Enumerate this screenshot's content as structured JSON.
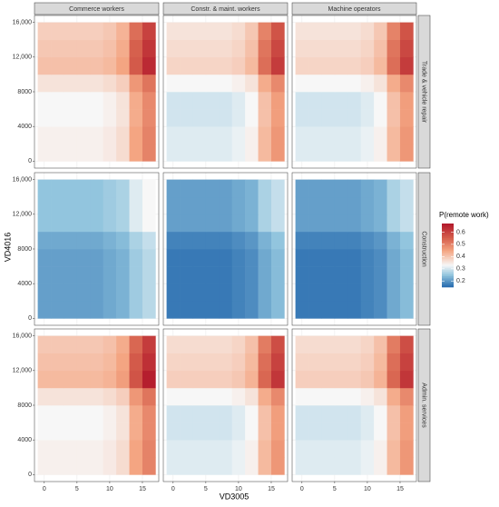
{
  "chart_data": {
    "type": "heatmap",
    "x_label": "VD3005",
    "y_label": "VD4016",
    "legend_title": "P(remote work)",
    "columns": [
      "Commerce workers",
      "Constr. & maint. workers",
      "Machine operators"
    ],
    "rows": [
      "Trade & vehicle repair",
      "Construction",
      "Admin. services"
    ],
    "x": [
      0,
      2,
      4,
      6,
      8,
      10,
      12,
      14,
      16
    ],
    "y": [
      1000,
      3000,
      5000,
      7000,
      9000,
      11000,
      13000,
      15000
    ],
    "xlim": [
      -1.5,
      17.5
    ],
    "ylim": [
      -800,
      16800
    ],
    "xticks": [
      0,
      5,
      10,
      15
    ],
    "yticks": [
      0,
      4000,
      8000,
      {
        "value": 12000,
        "label": "12,000"
      },
      {
        "value": 16000,
        "label": "16,000"
      }
    ],
    "grid": true,
    "colorscale": [
      [
        0.15,
        "#2166ac"
      ],
      [
        0.25,
        "#92c5de"
      ],
      [
        0.33,
        "#f7f7f7"
      ],
      [
        0.45,
        "#f4a582"
      ],
      [
        0.55,
        "#d6604d"
      ],
      [
        0.67,
        "#b2182b"
      ]
    ],
    "legend_lim": [
      0.15,
      0.67
    ],
    "legend_ticks": [
      0.2,
      0.3,
      0.4,
      0.5,
      0.6
    ],
    "panels": [
      {
        "values": [
          [
            0.34,
            0.34,
            0.34,
            0.34,
            0.34,
            0.35,
            0.37,
            0.45,
            0.5
          ],
          [
            0.34,
            0.34,
            0.34,
            0.34,
            0.34,
            0.35,
            0.37,
            0.45,
            0.5
          ],
          [
            0.33,
            0.33,
            0.33,
            0.33,
            0.33,
            0.34,
            0.36,
            0.44,
            0.49
          ],
          [
            0.33,
            0.33,
            0.33,
            0.33,
            0.33,
            0.34,
            0.36,
            0.44,
            0.49
          ],
          [
            0.36,
            0.36,
            0.36,
            0.36,
            0.36,
            0.37,
            0.39,
            0.47,
            0.52
          ],
          [
            0.41,
            0.41,
            0.41,
            0.41,
            0.41,
            0.42,
            0.45,
            0.56,
            0.64
          ],
          [
            0.4,
            0.4,
            0.4,
            0.4,
            0.4,
            0.41,
            0.44,
            0.55,
            0.62
          ],
          [
            0.39,
            0.39,
            0.39,
            0.39,
            0.39,
            0.4,
            0.43,
            0.53,
            0.6
          ]
        ]
      },
      {
        "values": [
          [
            0.31,
            0.31,
            0.31,
            0.31,
            0.31,
            0.32,
            0.34,
            0.42,
            0.47
          ],
          [
            0.31,
            0.31,
            0.31,
            0.31,
            0.31,
            0.32,
            0.34,
            0.42,
            0.47
          ],
          [
            0.3,
            0.3,
            0.3,
            0.3,
            0.3,
            0.31,
            0.33,
            0.41,
            0.46
          ],
          [
            0.3,
            0.3,
            0.3,
            0.3,
            0.3,
            0.31,
            0.33,
            0.41,
            0.46
          ],
          [
            0.33,
            0.33,
            0.33,
            0.33,
            0.33,
            0.34,
            0.36,
            0.44,
            0.49
          ],
          [
            0.38,
            0.38,
            0.38,
            0.38,
            0.38,
            0.39,
            0.42,
            0.53,
            0.61
          ],
          [
            0.37,
            0.37,
            0.37,
            0.37,
            0.37,
            0.38,
            0.41,
            0.52,
            0.59
          ],
          [
            0.36,
            0.36,
            0.36,
            0.36,
            0.36,
            0.37,
            0.4,
            0.5,
            0.57
          ]
        ]
      },
      {
        "values": [
          [
            0.31,
            0.31,
            0.31,
            0.31,
            0.31,
            0.32,
            0.34,
            0.42,
            0.47
          ],
          [
            0.31,
            0.31,
            0.31,
            0.31,
            0.31,
            0.32,
            0.34,
            0.42,
            0.47
          ],
          [
            0.3,
            0.3,
            0.3,
            0.3,
            0.3,
            0.31,
            0.33,
            0.41,
            0.46
          ],
          [
            0.3,
            0.3,
            0.3,
            0.3,
            0.3,
            0.31,
            0.33,
            0.41,
            0.46
          ],
          [
            0.33,
            0.33,
            0.33,
            0.33,
            0.33,
            0.34,
            0.36,
            0.44,
            0.49
          ],
          [
            0.38,
            0.38,
            0.38,
            0.38,
            0.38,
            0.39,
            0.42,
            0.53,
            0.61
          ],
          [
            0.37,
            0.37,
            0.37,
            0.37,
            0.37,
            0.38,
            0.41,
            0.52,
            0.59
          ],
          [
            0.36,
            0.36,
            0.36,
            0.36,
            0.36,
            0.37,
            0.4,
            0.5,
            0.57
          ]
        ]
      },
      {
        "values": [
          [
            0.21,
            0.21,
            0.21,
            0.21,
            0.21,
            0.22,
            0.23,
            0.26,
            0.28
          ],
          [
            0.21,
            0.21,
            0.21,
            0.21,
            0.21,
            0.22,
            0.23,
            0.26,
            0.28
          ],
          [
            0.21,
            0.21,
            0.21,
            0.21,
            0.21,
            0.22,
            0.23,
            0.26,
            0.28
          ],
          [
            0.21,
            0.21,
            0.21,
            0.21,
            0.21,
            0.22,
            0.23,
            0.26,
            0.28
          ],
          [
            0.22,
            0.22,
            0.22,
            0.22,
            0.22,
            0.23,
            0.24,
            0.27,
            0.29
          ],
          [
            0.25,
            0.25,
            0.25,
            0.25,
            0.25,
            0.26,
            0.27,
            0.31,
            0.33
          ],
          [
            0.25,
            0.25,
            0.25,
            0.25,
            0.25,
            0.26,
            0.27,
            0.31,
            0.33
          ],
          [
            0.25,
            0.25,
            0.25,
            0.25,
            0.25,
            0.26,
            0.27,
            0.31,
            0.33
          ]
        ]
      },
      {
        "values": [
          [
            0.17,
            0.17,
            0.17,
            0.17,
            0.17,
            0.18,
            0.19,
            0.22,
            0.24
          ],
          [
            0.17,
            0.17,
            0.17,
            0.17,
            0.17,
            0.18,
            0.19,
            0.22,
            0.24
          ],
          [
            0.17,
            0.17,
            0.17,
            0.17,
            0.17,
            0.18,
            0.19,
            0.22,
            0.24
          ],
          [
            0.17,
            0.17,
            0.17,
            0.17,
            0.17,
            0.18,
            0.19,
            0.22,
            0.24
          ],
          [
            0.18,
            0.18,
            0.18,
            0.18,
            0.18,
            0.19,
            0.2,
            0.23,
            0.25
          ],
          [
            0.21,
            0.21,
            0.21,
            0.21,
            0.21,
            0.22,
            0.23,
            0.27,
            0.29
          ],
          [
            0.21,
            0.21,
            0.21,
            0.21,
            0.21,
            0.22,
            0.23,
            0.27,
            0.29
          ],
          [
            0.21,
            0.21,
            0.21,
            0.21,
            0.21,
            0.22,
            0.23,
            0.27,
            0.29
          ]
        ]
      },
      {
        "values": [
          [
            0.17,
            0.17,
            0.17,
            0.17,
            0.17,
            0.18,
            0.19,
            0.22,
            0.24
          ],
          [
            0.17,
            0.17,
            0.17,
            0.17,
            0.17,
            0.18,
            0.19,
            0.22,
            0.24
          ],
          [
            0.17,
            0.17,
            0.17,
            0.17,
            0.17,
            0.18,
            0.19,
            0.22,
            0.24
          ],
          [
            0.17,
            0.17,
            0.17,
            0.17,
            0.17,
            0.18,
            0.19,
            0.22,
            0.24
          ],
          [
            0.18,
            0.18,
            0.18,
            0.18,
            0.18,
            0.19,
            0.2,
            0.23,
            0.25
          ],
          [
            0.21,
            0.21,
            0.21,
            0.21,
            0.21,
            0.22,
            0.23,
            0.27,
            0.29
          ],
          [
            0.21,
            0.21,
            0.21,
            0.21,
            0.21,
            0.22,
            0.23,
            0.27,
            0.29
          ],
          [
            0.21,
            0.21,
            0.21,
            0.21,
            0.21,
            0.22,
            0.23,
            0.27,
            0.29
          ]
        ]
      },
      {
        "values": [
          [
            0.34,
            0.34,
            0.34,
            0.34,
            0.34,
            0.35,
            0.37,
            0.45,
            0.5
          ],
          [
            0.34,
            0.34,
            0.34,
            0.34,
            0.34,
            0.35,
            0.37,
            0.45,
            0.5
          ],
          [
            0.33,
            0.33,
            0.33,
            0.33,
            0.33,
            0.34,
            0.36,
            0.44,
            0.49
          ],
          [
            0.33,
            0.33,
            0.33,
            0.33,
            0.33,
            0.34,
            0.36,
            0.44,
            0.49
          ],
          [
            0.36,
            0.36,
            0.36,
            0.36,
            0.36,
            0.37,
            0.39,
            0.47,
            0.52
          ],
          [
            0.42,
            0.42,
            0.42,
            0.42,
            0.42,
            0.43,
            0.46,
            0.57,
            0.66
          ],
          [
            0.41,
            0.41,
            0.41,
            0.41,
            0.41,
            0.42,
            0.45,
            0.56,
            0.63
          ],
          [
            0.4,
            0.4,
            0.4,
            0.4,
            0.4,
            0.41,
            0.44,
            0.54,
            0.61
          ]
        ]
      },
      {
        "values": [
          [
            0.31,
            0.31,
            0.31,
            0.31,
            0.31,
            0.32,
            0.34,
            0.42,
            0.47
          ],
          [
            0.31,
            0.31,
            0.31,
            0.31,
            0.31,
            0.32,
            0.34,
            0.42,
            0.47
          ],
          [
            0.3,
            0.3,
            0.3,
            0.3,
            0.3,
            0.31,
            0.33,
            0.41,
            0.46
          ],
          [
            0.3,
            0.3,
            0.3,
            0.3,
            0.3,
            0.31,
            0.33,
            0.41,
            0.46
          ],
          [
            0.33,
            0.33,
            0.33,
            0.33,
            0.33,
            0.34,
            0.36,
            0.44,
            0.49
          ],
          [
            0.39,
            0.39,
            0.39,
            0.39,
            0.39,
            0.4,
            0.43,
            0.54,
            0.62
          ],
          [
            0.38,
            0.38,
            0.38,
            0.38,
            0.38,
            0.39,
            0.42,
            0.53,
            0.6
          ],
          [
            0.37,
            0.37,
            0.37,
            0.37,
            0.37,
            0.38,
            0.41,
            0.51,
            0.58
          ]
        ]
      },
      {
        "values": [
          [
            0.31,
            0.31,
            0.31,
            0.31,
            0.31,
            0.32,
            0.34,
            0.42,
            0.47
          ],
          [
            0.31,
            0.31,
            0.31,
            0.31,
            0.31,
            0.32,
            0.34,
            0.42,
            0.47
          ],
          [
            0.3,
            0.3,
            0.3,
            0.3,
            0.3,
            0.31,
            0.33,
            0.41,
            0.46
          ],
          [
            0.3,
            0.3,
            0.3,
            0.3,
            0.3,
            0.31,
            0.33,
            0.41,
            0.46
          ],
          [
            0.33,
            0.33,
            0.33,
            0.33,
            0.33,
            0.34,
            0.36,
            0.44,
            0.49
          ],
          [
            0.39,
            0.39,
            0.39,
            0.39,
            0.39,
            0.4,
            0.43,
            0.54,
            0.62
          ],
          [
            0.38,
            0.38,
            0.38,
            0.38,
            0.38,
            0.39,
            0.42,
            0.53,
            0.6
          ],
          [
            0.37,
            0.37,
            0.37,
            0.37,
            0.37,
            0.38,
            0.41,
            0.51,
            0.58
          ]
        ]
      }
    ]
  }
}
